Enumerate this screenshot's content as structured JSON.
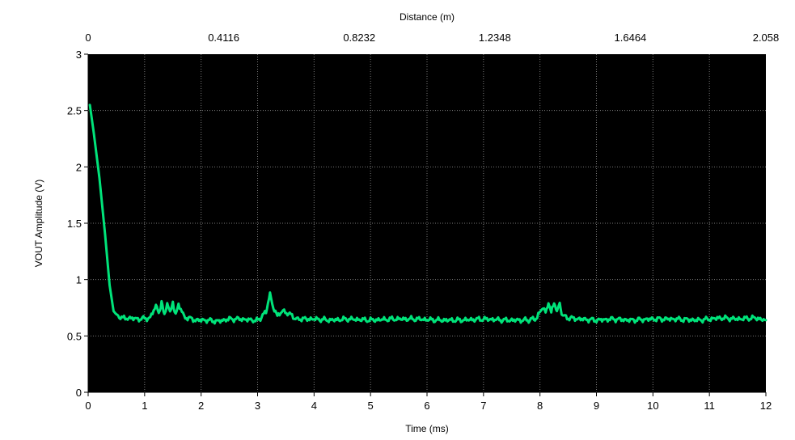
{
  "chart_data": {
    "type": "line",
    "xlabel": "Time (ms)",
    "ylabel": "VOUT Amplitude (V)",
    "x2label": "Distance (m)",
    "xlim": [
      0,
      12
    ],
    "ylim": [
      0,
      3
    ],
    "x2lim": [
      0,
      2.058
    ],
    "xticks": [
      "0",
      "1",
      "2",
      "3",
      "4",
      "5",
      "6",
      "7",
      "8",
      "9",
      "10",
      "11",
      "12"
    ],
    "yticks": [
      "0",
      "0.5",
      "1",
      "1.5",
      "2",
      "2.5",
      "3"
    ],
    "x2ticks": [
      "0",
      "0.4116",
      "0.8232",
      "1.2348",
      "1.6464",
      "2.058"
    ],
    "grid": true,
    "background": "#000000",
    "line_color": "#00e37a",
    "series": [
      {
        "x": [
          0.03,
          0.1,
          0.2,
          0.3,
          0.38,
          0.45,
          0.55,
          0.7,
          0.9,
          1.1,
          1.2,
          1.25,
          1.3,
          1.35,
          1.4,
          1.45,
          1.5,
          1.55,
          1.6,
          1.7,
          1.9,
          2.1,
          2.3,
          2.5,
          2.7,
          2.9,
          3.05,
          3.15,
          3.22,
          3.28,
          3.35,
          3.45,
          3.55,
          3.65,
          3.8,
          4.0,
          4.3,
          4.6,
          5.0,
          5.4,
          5.8,
          6.2,
          6.6,
          7.0,
          7.4,
          7.8,
          7.95,
          8.05,
          8.1,
          8.15,
          8.2,
          8.25,
          8.3,
          8.35,
          8.4,
          8.5,
          8.7,
          9.0,
          9.3,
          9.6,
          10.0,
          10.4,
          10.8,
          11.0,
          11.2,
          11.5,
          11.8,
          12.0
        ],
        "y": [
          2.55,
          2.3,
          1.9,
          1.4,
          0.95,
          0.72,
          0.66,
          0.66,
          0.65,
          0.66,
          0.77,
          0.7,
          0.8,
          0.68,
          0.8,
          0.7,
          0.8,
          0.68,
          0.78,
          0.67,
          0.64,
          0.64,
          0.63,
          0.65,
          0.65,
          0.64,
          0.65,
          0.72,
          0.87,
          0.75,
          0.68,
          0.72,
          0.7,
          0.66,
          0.65,
          0.65,
          0.64,
          0.65,
          0.64,
          0.65,
          0.65,
          0.64,
          0.64,
          0.65,
          0.64,
          0.64,
          0.66,
          0.76,
          0.7,
          0.8,
          0.7,
          0.8,
          0.72,
          0.78,
          0.68,
          0.66,
          0.65,
          0.64,
          0.65,
          0.64,
          0.65,
          0.65,
          0.64,
          0.65,
          0.66,
          0.65,
          0.66,
          0.64
        ]
      }
    ]
  }
}
